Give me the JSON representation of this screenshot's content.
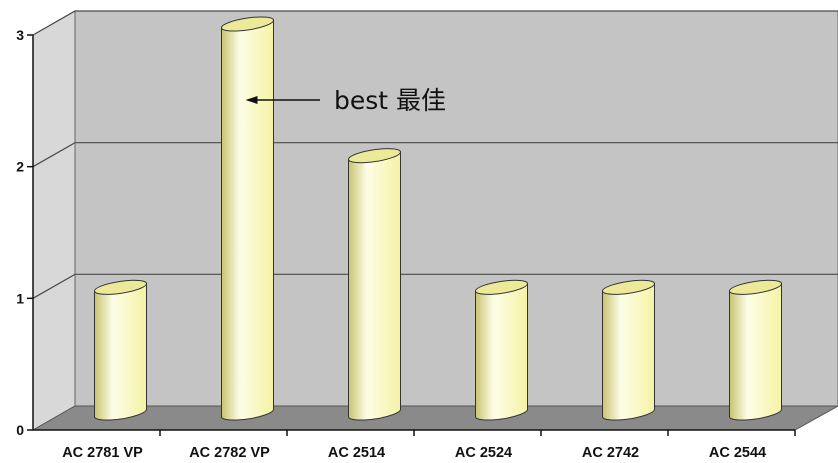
{
  "chart_data": {
    "type": "bar",
    "style": "3d-cylinder",
    "categories": [
      "AC 2781 VP",
      "AC 2782 VP",
      "AC 2514",
      "AC 2524",
      "AC 2742",
      "AC 2544"
    ],
    "values": [
      1,
      3,
      2,
      1,
      1,
      1
    ],
    "y_ticks": [
      "0",
      "1",
      "2",
      "3"
    ],
    "ylim": [
      0,
      3
    ],
    "title": "",
    "xlabel": "",
    "ylabel": "",
    "grid": true,
    "legend": "none",
    "annotation": {
      "text": "best 最佳",
      "target_category": "AC 2782 VP"
    },
    "colors": {
      "bar": "#f5f3a4",
      "bar_highlight": "#fdfde8",
      "bar_shadow": "#c8c470",
      "bar_top": "#ecea98",
      "wall": "#c4c4c4",
      "floor": "#8a8a8a",
      "grid": "#4a4a4a"
    }
  }
}
